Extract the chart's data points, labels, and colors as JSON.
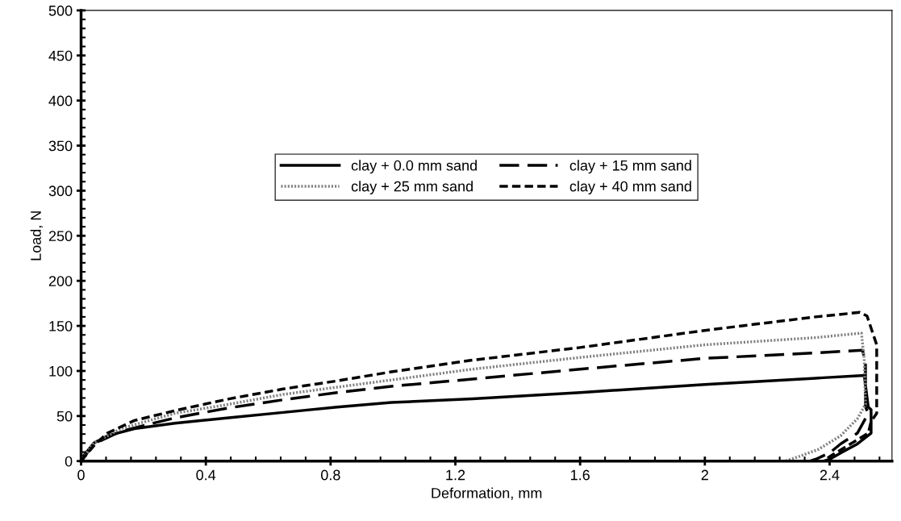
{
  "chart_data": {
    "type": "line",
    "xlabel": "Deformation, mm",
    "ylabel": "Load, N",
    "xlim": [
      0,
      2.6
    ],
    "xticks": [
      0,
      0.4,
      0.8,
      1.2,
      1.6,
      2,
      2.4
    ],
    "ylim": [
      0,
      500
    ],
    "yticks": [
      0,
      50,
      100,
      150,
      200,
      250,
      300,
      350,
      400,
      450,
      500
    ],
    "grid": false,
    "legend": "center",
    "marker": "none",
    "series": [
      {
        "name": "clay + 0.0 mm sand",
        "color": "#000000",
        "line_style": "solid",
        "x": [
          0,
          0.006,
          0.041,
          0.084,
          0.171,
          0.301,
          0.474,
          0.648,
          0.821,
          0.995,
          1.255,
          1.6,
          2.0,
          2.355,
          2.511,
          2.524,
          2.533,
          2.533,
          2.489,
          2.435,
          2.4,
          2.382
        ],
        "values": [
          0,
          5,
          20,
          28,
          36,
          42,
          48,
          54,
          60,
          65,
          69,
          76,
          85,
          92,
          95,
          60,
          57,
          31,
          19,
          9,
          2,
          0
        ]
      },
      {
        "name": "clay + 15 mm sand",
        "color": "#000000",
        "line_style": "longdash",
        "x": [
          0,
          0.041,
          0.127,
          0.301,
          0.474,
          0.648,
          0.821,
          0.995,
          1.255,
          1.6,
          2.0,
          2.355,
          2.506,
          2.515,
          2.515,
          2.524,
          2.489,
          2.435,
          2.4,
          2.355,
          2.337
        ],
        "values": [
          0,
          19,
          33,
          48,
          59,
          68,
          76,
          83,
          91,
          102,
          114,
          120,
          123,
          107,
          60,
          53,
          31,
          19,
          9,
          2,
          0
        ]
      },
      {
        "name": "clay + 25 mm sand",
        "color": "#808080",
        "line_style": "dotted",
        "x": [
          0,
          0.041,
          0.127,
          0.301,
          0.474,
          0.648,
          0.821,
          0.995,
          1.255,
          1.6,
          2.0,
          2.355,
          2.502,
          2.511,
          2.515,
          2.489,
          2.435,
          2.364,
          2.301,
          2.257
        ],
        "values": [
          0,
          20,
          36,
          53,
          63,
          74,
          82,
          90,
          102,
          115,
          129,
          137,
          142,
          113,
          63,
          47,
          28,
          13,
          5,
          0
        ]
      },
      {
        "name": "clay + 40 mm sand",
        "color": "#000000",
        "line_style": "dashed",
        "x": [
          0,
          0.041,
          0.084,
          0.171,
          0.301,
          0.474,
          0.648,
          0.821,
          0.995,
          1.255,
          1.6,
          2.0,
          2.355,
          2.497,
          2.52,
          2.551,
          2.551,
          2.533,
          2.524,
          2.4,
          2.382
        ],
        "values": [
          0,
          17,
          31,
          45,
          56,
          69,
          80,
          89,
          99,
          112,
          126,
          145,
          160,
          165,
          161,
          129,
          53,
          44,
          31,
          5,
          0
        ]
      }
    ]
  }
}
